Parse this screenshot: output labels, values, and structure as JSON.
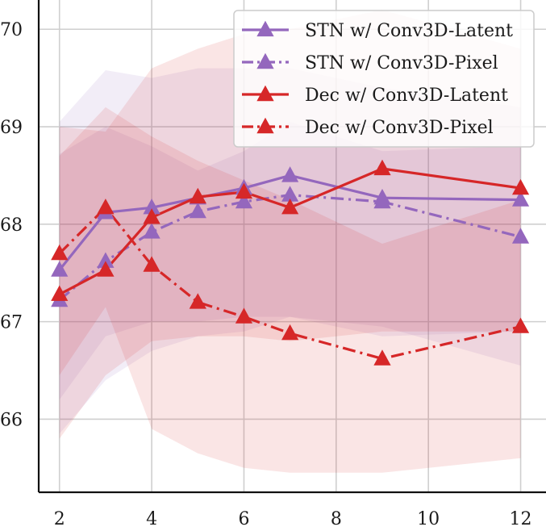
{
  "chart_data": {
    "type": "line",
    "title": "",
    "xlabel": "",
    "ylabel": "",
    "xlim": [
      1.55,
      12.55
    ],
    "ylim": [
      65.25,
      70.3
    ],
    "xticks": [
      2,
      4,
      6,
      8,
      10,
      12
    ],
    "yticks": [
      66,
      67,
      68,
      69,
      70
    ],
    "x_tick_labels": [
      "2",
      "4",
      "6",
      "8",
      "10",
      "12"
    ],
    "y_tick_labels": [
      "66",
      "67",
      "68",
      "69",
      "70"
    ],
    "grid": true,
    "legend_position": "top-right",
    "x": [
      2,
      3,
      4,
      5,
      6,
      7,
      9,
      12
    ],
    "series": [
      {
        "name": "STN w/ Conv3D-Latent",
        "color": "#9467bd",
        "linestyle": "solid",
        "marker": "triangle",
        "values": [
          67.53,
          68.12,
          68.17,
          68.27,
          68.37,
          68.5,
          68.27,
          68.25
        ],
        "band_upper": [
          69.05,
          69.58,
          69.5,
          69.6,
          69.6,
          69.6,
          69.4,
          69.2
        ],
        "band_lower": [
          66.2,
          66.85,
          67.0,
          67.0,
          67.05,
          67.05,
          66.85,
          66.9
        ]
      },
      {
        "name": "STN w/ Conv3D-Pixel",
        "color": "#9467bd",
        "linestyle": "dashdot",
        "marker": "triangle",
        "values": [
          67.22,
          67.62,
          67.92,
          68.13,
          68.23,
          68.3,
          68.23,
          67.87
        ],
        "band_upper": [
          68.72,
          69.0,
          68.8,
          68.55,
          68.75,
          69.05,
          68.75,
          68.8
        ],
        "band_lower": [
          65.85,
          66.4,
          66.7,
          66.85,
          66.9,
          67.05,
          66.95,
          66.55
        ]
      },
      {
        "name": "Dec w/ Conv3D-Latent",
        "color": "#d62728",
        "linestyle": "solid",
        "marker": "triangle",
        "values": [
          67.28,
          67.53,
          68.07,
          68.28,
          68.33,
          68.17,
          68.57,
          68.37
        ],
        "band_upper": [
          69.0,
          68.95,
          69.6,
          69.8,
          69.95,
          70.0,
          70.2,
          69.8
        ],
        "band_lower": [
          65.8,
          66.45,
          66.8,
          66.85,
          66.85,
          66.8,
          66.9,
          66.9
        ]
      },
      {
        "name": "Dec w/ Conv3D-Pixel",
        "color": "#d62728",
        "linestyle": "dashdot",
        "marker": "triangle",
        "values": [
          67.7,
          68.17,
          67.58,
          67.2,
          67.05,
          66.88,
          66.62,
          66.95
        ],
        "band_upper": [
          68.7,
          69.2,
          68.9,
          68.65,
          68.45,
          68.25,
          67.8,
          68.25
        ],
        "band_lower": [
          66.45,
          67.15,
          65.9,
          65.65,
          65.5,
          65.45,
          65.45,
          65.6
        ]
      }
    ]
  }
}
